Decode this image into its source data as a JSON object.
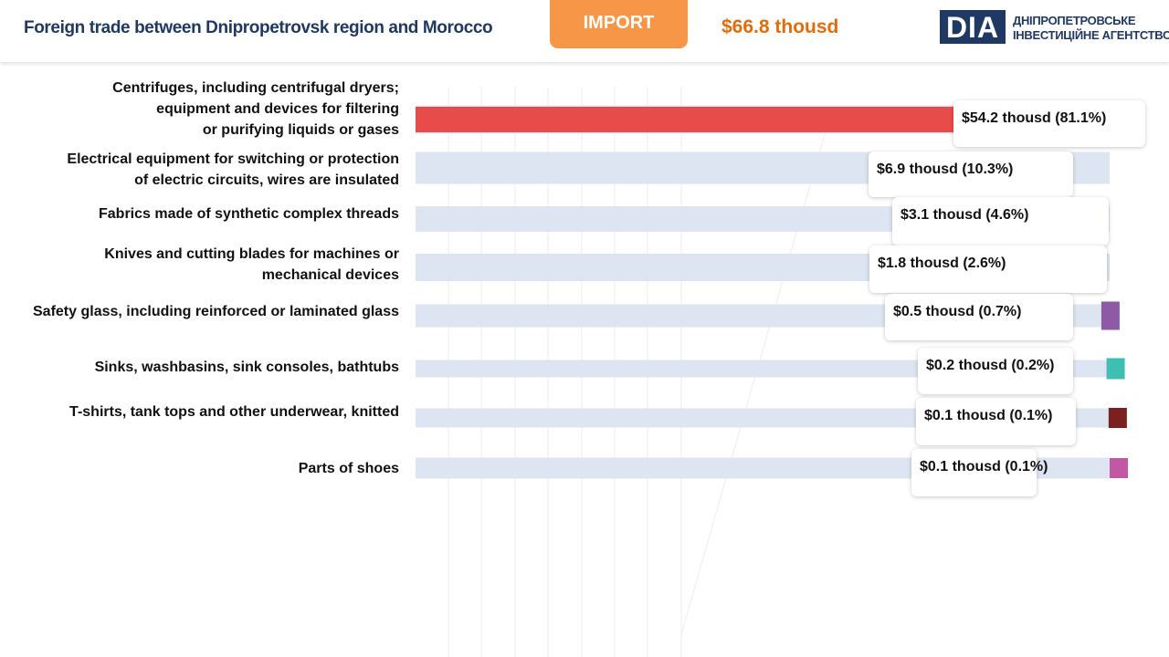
{
  "header": {
    "title": "Foreign trade between Dnipropetrovsk region and Morocco",
    "import_label": "IMPORT",
    "total": "$66.8 thousd",
    "logo": {
      "mark": "DIA",
      "line1": "ДНІПРОПЕТРОВСЬКЕ",
      "line2": "ІНВЕСТИЦІЙНЕ АГЕНТСТВО"
    }
  },
  "chart_data": {
    "type": "bar",
    "orientation": "horizontal",
    "style": "waterfall",
    "categories": [
      "Centrifuges, including centrifugal dryers; equipment and devices for filtering or purifying liquids or gases",
      "Electrical equipment for switching or protection of electric circuits, wires are insulated",
      "Fabrics made of synthetic complex threads",
      "Knives and cutting blades for machines or mechanical devices",
      "Safety glass, including reinforced or laminated glass",
      "Sinks, washbasins, sink consoles, bathtubs",
      "T-shirts, tank tops and other underwear, knitted",
      "Parts of shoes"
    ],
    "category_lines": [
      [
        "Centrifuges, including centrifugal dryers;",
        "equipment and devices for filtering",
        "or purifying liquids or gases"
      ],
      [
        "Electrical equipment for switching or protection",
        "of electric circuits, wires are insulated"
      ],
      [
        "Fabrics made of synthetic complex threads"
      ],
      [
        "Knives and cutting blades for machines or",
        "mechanical devices"
      ],
      [
        "Safety glass, including reinforced or laminated glass"
      ],
      [
        "Sinks, washbasins, sink consoles, bathtubs"
      ],
      [
        "T-shirts, tank tops and other underwear, knitted"
      ],
      [
        "Parts of shoes"
      ]
    ],
    "values": [
      54.2,
      6.9,
      3.1,
      1.8,
      0.5,
      0.2,
      0.1,
      0.1
    ],
    "shares_percent": [
      81.1,
      10.3,
      4.6,
      2.6,
      0.7,
      0.2,
      0.1,
      0.1
    ],
    "data_labels": [
      "$54.2 thousd (81.1%)",
      "$6.9 thousd (10.3%)",
      "$3.1 thousd (4.6%)",
      "$1.8 thousd (2.6%)",
      "$0.5 thousd (0.7%)",
      "$0.2 thousd (0.2%)",
      "$0.1 thousd  (0.1%)",
      "$0.1 thousd (0.1%)"
    ],
    "colors": [
      "#e84c4a",
      "#4cb35c",
      "#f8a832",
      "#457b9d",
      "#8e5aa6",
      "#3fbfb2",
      "#7b1f1f",
      "#c257a3"
    ],
    "track_color": "#dce5f1",
    "xlim": [
      0,
      66.8
    ],
    "grid": true,
    "legend": "none"
  }
}
